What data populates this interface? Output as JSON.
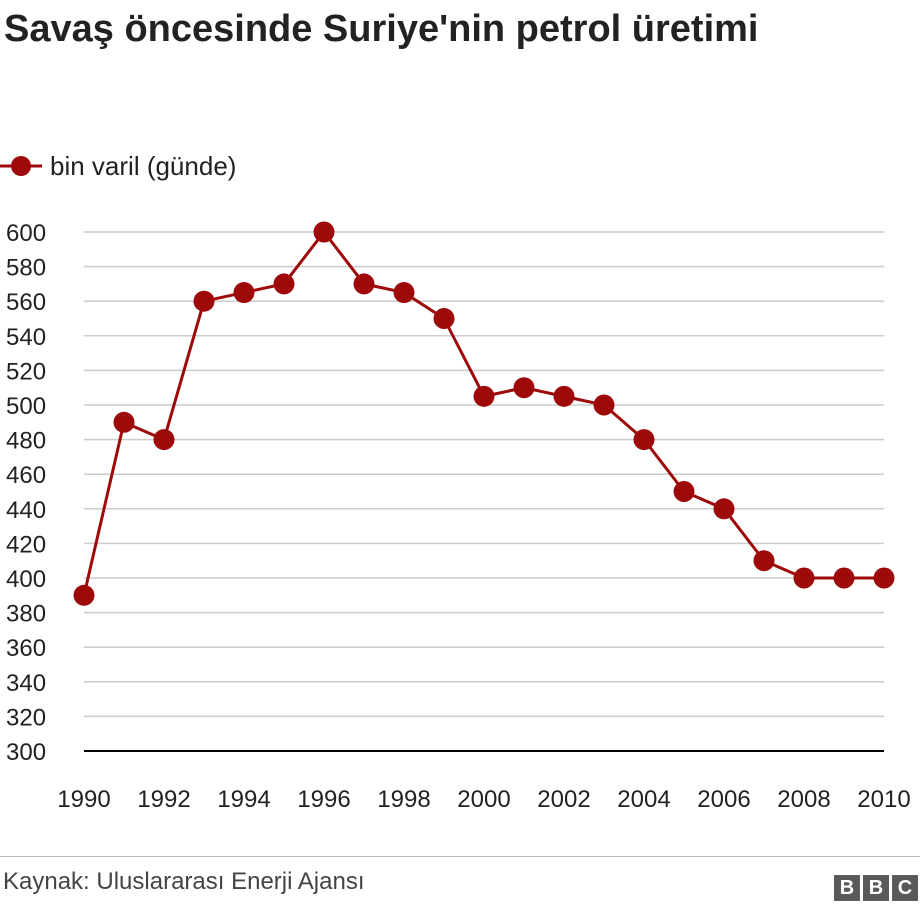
{
  "title": "Savaş öncesinde Suriye'nin petrol üretimi",
  "source": "Kaynak: Uluslararası Enerji Ajansı",
  "logo_letters": [
    "B",
    "B",
    "C"
  ],
  "colors": {
    "series": "#9e0a0a",
    "grid": "#cccccc",
    "axis": "#000000",
    "logo": "#5a5a5a"
  },
  "chart_data": {
    "type": "line",
    "title": "Savaş öncesinde Suriye'nin petrol üretimi",
    "xlabel": "",
    "ylabel": "",
    "x": [
      1990,
      1991,
      1992,
      1993,
      1994,
      1995,
      1996,
      1997,
      1998,
      1999,
      2000,
      2001,
      2002,
      2003,
      2004,
      2005,
      2006,
      2007,
      2008,
      2009,
      2010
    ],
    "series": [
      {
        "name": "bin varil (günde)",
        "values": [
          390,
          490,
          480,
          560,
          565,
          570,
          600,
          570,
          565,
          550,
          505,
          510,
          505,
          500,
          480,
          450,
          440,
          410,
          400,
          400,
          400
        ]
      }
    ],
    "xticks": [
      "1990",
      "1992",
      "1994",
      "1996",
      "1998",
      "2000",
      "2002",
      "2004",
      "2006",
      "2008",
      "2010"
    ],
    "yticks": [
      300,
      320,
      340,
      360,
      380,
      400,
      420,
      440,
      460,
      480,
      500,
      520,
      540,
      560,
      580,
      600
    ],
    "xlim": [
      1990,
      2010
    ],
    "ylim": [
      300,
      600
    ],
    "grid": true,
    "legend_position": "top-left"
  }
}
